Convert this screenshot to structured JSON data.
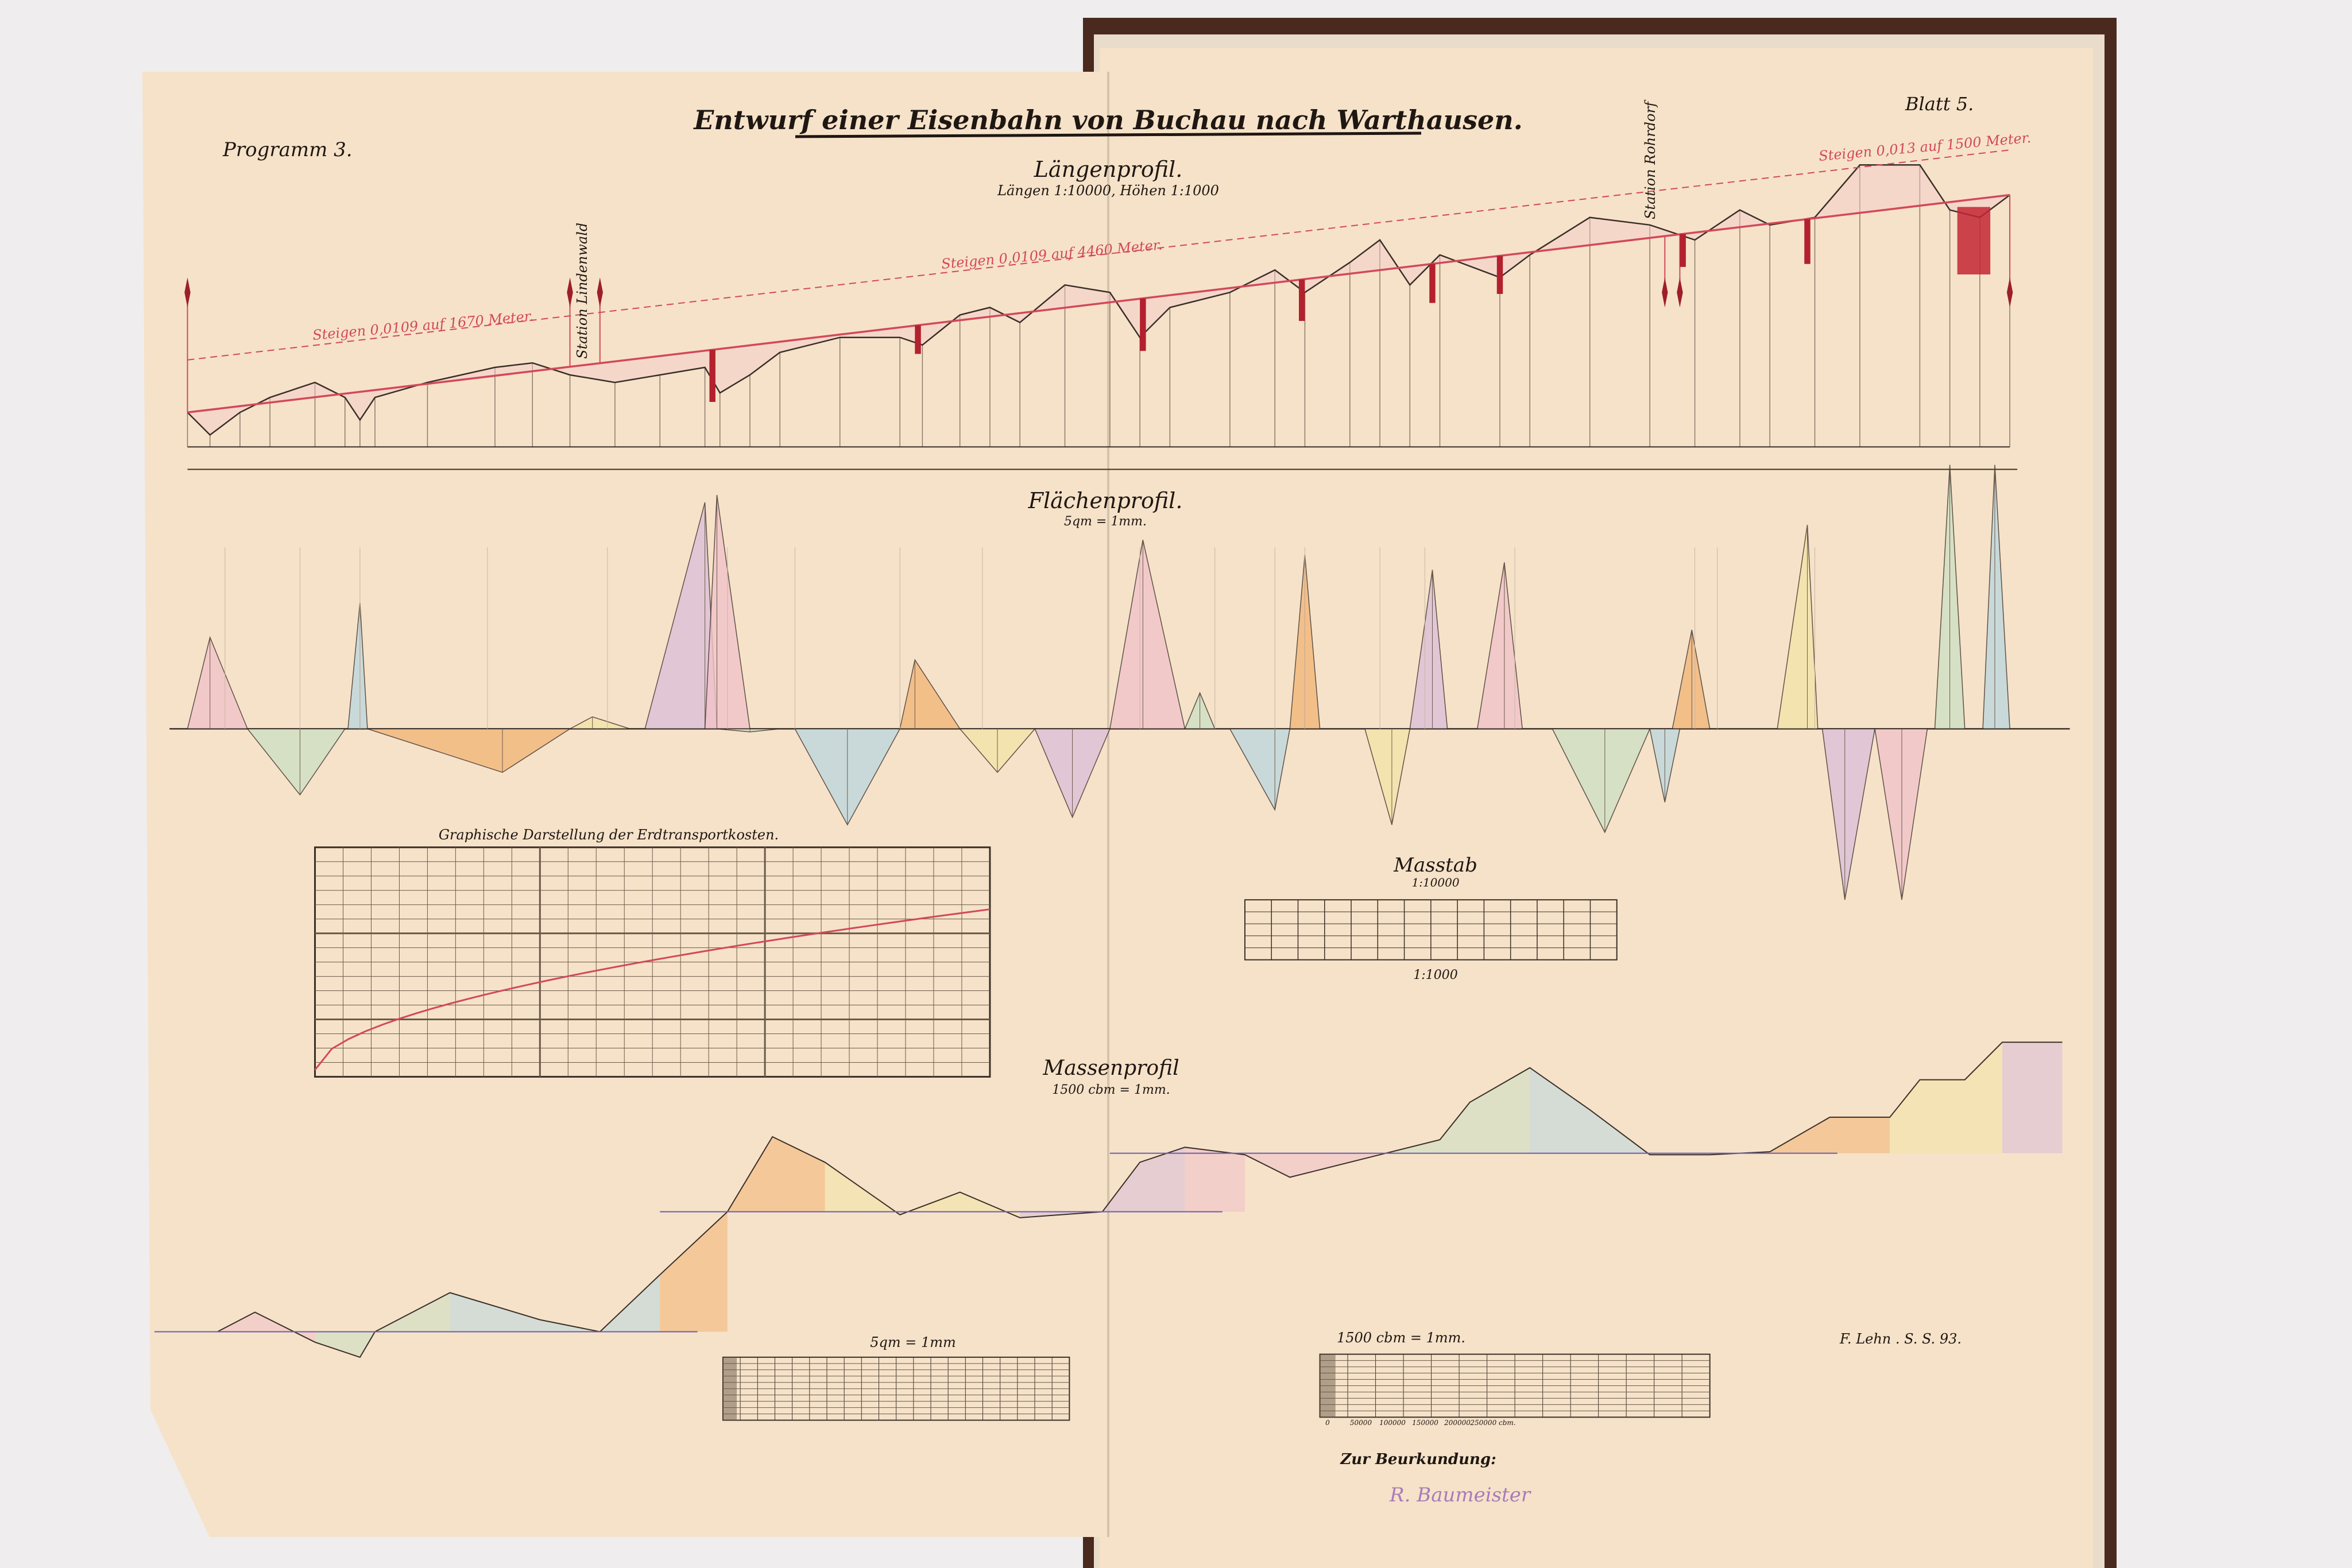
{
  "sheet": {
    "title": "Entwurf einer Eisenbahn von Buchau nach Warthausen.",
    "program": "Programm 3.",
    "sheet_no": "Blatt 5."
  },
  "laengenprofil": {
    "heading": "Längenprofil.",
    "scale": "Längen 1:10000, Höhen 1:1000",
    "gradients": [
      "Steigen 0,0109 auf 1670 Meter.",
      "Steigen 0,0109 auf 4460 Meter.",
      "Steigen 0,013 auf 1500 Meter."
    ],
    "stations": [
      "Station Lindenwald",
      "Station Rohrdorf"
    ]
  },
  "flaechenprofil": {
    "heading": "Flächenprofil.",
    "scale": "5qm = 1mm."
  },
  "transport_chart": {
    "heading": "Graphische Darstellung der Erdtransportkosten."
  },
  "masstab": {
    "heading": "Masstab",
    "scale_top": "1:10000",
    "scale_bottom": "1:1000"
  },
  "massenprofil": {
    "heading": "Massenprofil",
    "scale": "1500 cbm = 1mm."
  },
  "bottom_scales": {
    "area_scale_label": "5qm = 1mm",
    "volume_scale_label": "1500 cbm = 1mm.",
    "volume_ticks": [
      "0",
      "50000",
      "100000",
      "150000",
      "200000",
      "250000 cbm."
    ]
  },
  "signature": "F. Lehn . S. S. 93.",
  "certification": {
    "label": "Zur Beurkundung:",
    "stamp": "R. Baumeister"
  },
  "colors": {
    "paper": "#f6e2c9",
    "ink": "#1e1712",
    "grade_red": "#d2485a",
    "cover": "#4a2a1e"
  }
}
